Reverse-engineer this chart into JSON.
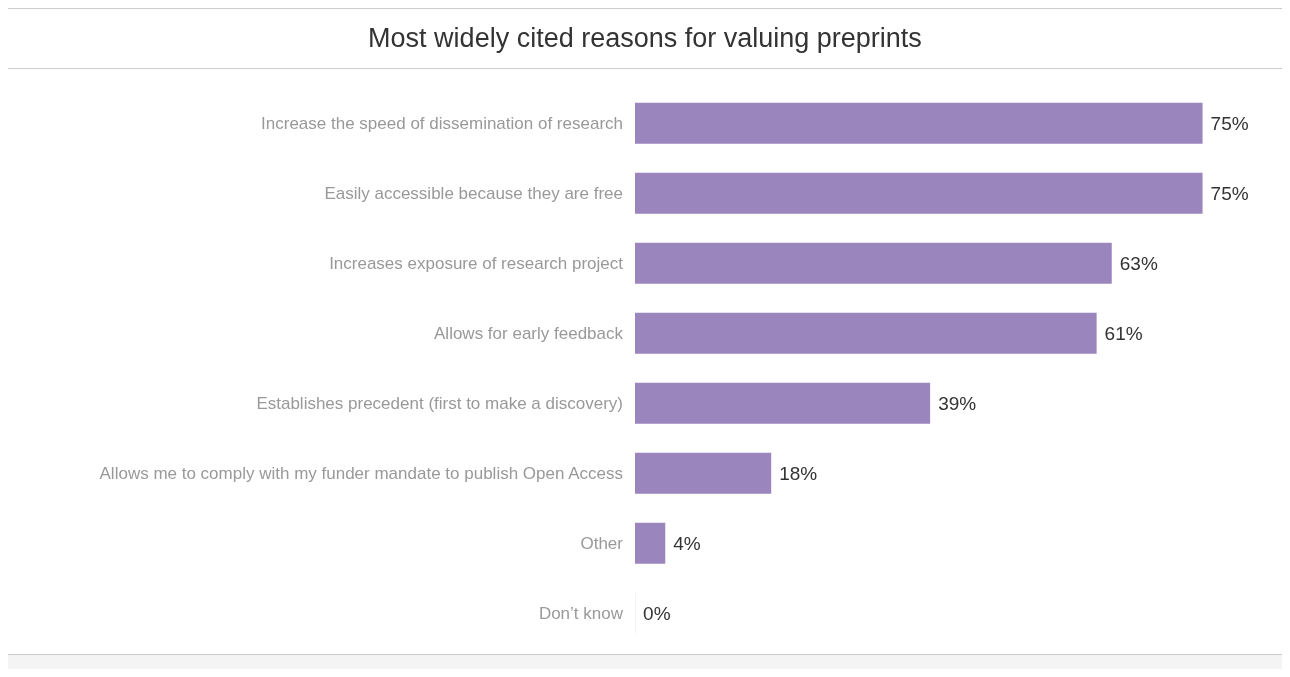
{
  "chart_data": {
    "type": "bar",
    "orientation": "horizontal",
    "title": "Most widely cited reasons for valuing preprints",
    "categories": [
      "Increase the speed of dissemination of research",
      "Easily accessible because they are free",
      "Increases exposure of research project",
      "Allows for early feedback",
      "Establishes precedent (first to make a discovery)",
      "Allows me to comply with my funder mandate to publish Open Access",
      "Other",
      "Don’t know"
    ],
    "values": [
      75,
      75,
      63,
      61,
      39,
      18,
      4,
      0
    ],
    "value_labels": [
      "75%",
      "75%",
      "63%",
      "61%",
      "39%",
      "18%",
      "4%",
      "0%"
    ],
    "color": "#9a86bd",
    "grid": false,
    "legend": false
  }
}
